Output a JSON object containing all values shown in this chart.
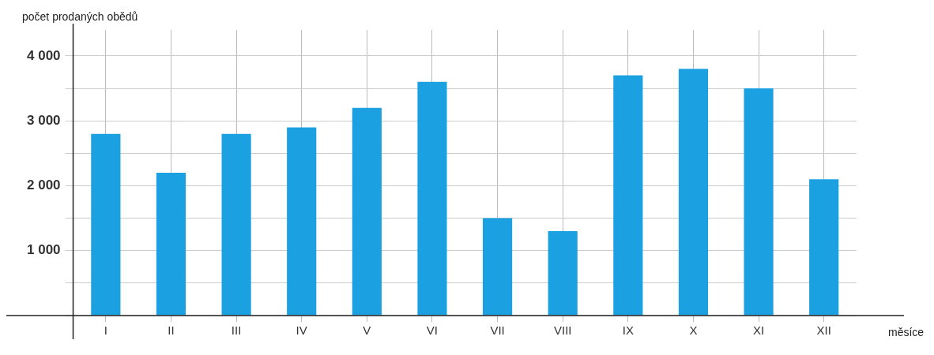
{
  "chart_data": {
    "type": "bar",
    "xlabel": "měsíce",
    "ylabel": "počet prodaných obědů",
    "categories": [
      "I",
      "II",
      "III",
      "IV",
      "V",
      "VI",
      "VII",
      "VIII",
      "IX",
      "X",
      "XI",
      "XII"
    ],
    "values": [
      2800,
      2200,
      2800,
      2900,
      3200,
      3600,
      1500,
      1300,
      3700,
      3800,
      3500,
      2100
    ],
    "color": "#1ba1e2",
    "ylim": [
      0,
      4400
    ],
    "yticks": [
      {
        "value": 0,
        "label": null
      },
      {
        "value": 500,
        "label": null
      },
      1000,
      {
        "value": 1500,
        "label": null
      },
      2000,
      {
        "value": 2500,
        "label": null
      },
      3000,
      {
        "value": 3500,
        "label": null
      },
      4000
    ],
    "grid": true,
    "legend": false
  }
}
